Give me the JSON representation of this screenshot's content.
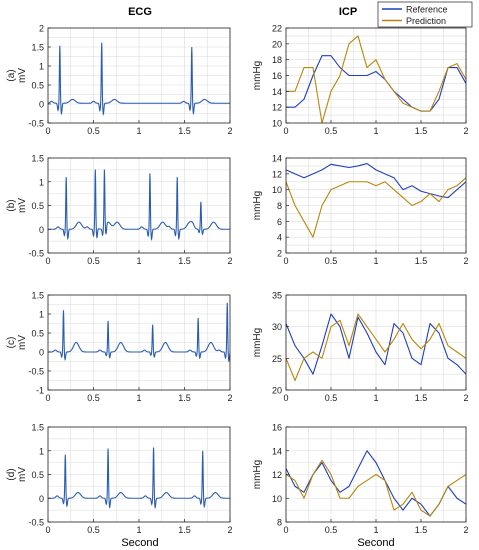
{
  "figure": {
    "ecg_title": "ECG",
    "icp_title": "ICP",
    "xlabel": "Second",
    "legend": {
      "reference": "Reference",
      "prediction": "Prediction"
    },
    "colors": {
      "reference": "#1f3fbf",
      "prediction": "#b8860b",
      "ecg": "#2a5db0"
    }
  },
  "chart_data": [
    {
      "type": "line",
      "panel": "(a)",
      "signal": "ECG",
      "ylabel": "mV",
      "xlim": [
        0,
        2
      ],
      "ylim": [
        -0.5,
        2
      ],
      "xticks": [
        "0",
        "0.5",
        "1",
        "1.5",
        "2"
      ],
      "yticks": [
        "-0.5",
        "0",
        "0.5",
        "1",
        "1.5",
        "2"
      ],
      "grid": true,
      "beats": [
        0.13,
        0.59,
        1.58
      ],
      "peak_amplitude": [
        1.52,
        1.6,
        1.48
      ],
      "baseline": 0.02,
      "t_wave_amplitude": 0.1,
      "series": [
        {
          "name": "ECG",
          "x": [
            0,
            0.08,
            0.1,
            0.11,
            0.13,
            0.15,
            0.17,
            0.25,
            0.35,
            0.45,
            0.55,
            0.57,
            0.59,
            0.61,
            0.63,
            0.7,
            0.8,
            1.0,
            1.2,
            1.45,
            1.53,
            1.56,
            1.58,
            1.6,
            1.62,
            1.7,
            1.8,
            1.9,
            2.0
          ],
          "y": [
            0.0,
            0.0,
            -0.1,
            0.0,
            1.52,
            -0.05,
            0.0,
            0.0,
            0.1,
            0.02,
            0.0,
            -0.1,
            1.6,
            -0.06,
            0.03,
            0.15,
            0.1,
            0.05,
            0.04,
            0.1,
            0.0,
            -0.1,
            1.48,
            -0.08,
            0.0,
            0.02,
            0.05,
            -0.02,
            0.0
          ]
        }
      ]
    },
    {
      "type": "line",
      "panel": "(a)",
      "signal": "ICP",
      "ylabel": "mmHg",
      "xlim": [
        0,
        2
      ],
      "ylim": [
        10,
        22
      ],
      "xticks": [
        "0",
        "0.5",
        "1",
        "1.5",
        "2"
      ],
      "yticks": [
        "10",
        "12",
        "14",
        "16",
        "18",
        "20",
        "22"
      ],
      "grid": true,
      "series": [
        {
          "name": "Reference",
          "x": [
            0,
            0.1,
            0.2,
            0.3,
            0.4,
            0.5,
            0.6,
            0.7,
            0.8,
            0.9,
            1.0,
            1.1,
            1.2,
            1.3,
            1.4,
            1.5,
            1.6,
            1.7,
            1.8,
            1.9,
            2.0
          ],
          "y": [
            12,
            12,
            13,
            16,
            18.5,
            18.5,
            17,
            16,
            16,
            16,
            16.5,
            15.5,
            14,
            13,
            12,
            11.5,
            11.5,
            13,
            17,
            17,
            15
          ]
        },
        {
          "name": "Prediction",
          "x": [
            0,
            0.1,
            0.2,
            0.3,
            0.4,
            0.5,
            0.6,
            0.7,
            0.8,
            0.9,
            1.0,
            1.1,
            1.2,
            1.3,
            1.4,
            1.5,
            1.6,
            1.7,
            1.8,
            1.9,
            2.0
          ],
          "y": [
            14,
            14,
            17,
            17,
            10,
            14,
            16,
            20,
            21,
            17,
            18,
            15.5,
            14,
            12.5,
            12,
            11.5,
            11.5,
            14,
            17,
            17.5,
            15.5
          ]
        }
      ]
    },
    {
      "type": "line",
      "panel": "(b)",
      "signal": "ECG",
      "ylabel": "mV",
      "xlim": [
        0,
        2
      ],
      "ylim": [
        -0.5,
        1.5
      ],
      "xticks": [
        "0",
        "0.5",
        "1",
        "1.5",
        "2"
      ],
      "yticks": [
        "-0.5",
        "0",
        "0.5",
        "1",
        "1.5"
      ],
      "grid": true,
      "beats": [
        0.2,
        0.52,
        0.62,
        1.12,
        1.42,
        1.68
      ],
      "peak_amplitude": [
        1.1,
        1.22,
        1.2,
        1.18,
        1.1,
        0.58
      ],
      "baseline": 0.0,
      "t_wave_amplitude": 0.15,
      "series": [
        {
          "name": "ECG",
          "x": [
            0,
            0.1,
            0.18,
            0.2,
            0.22,
            0.3,
            0.4,
            0.5,
            0.52,
            0.54,
            0.6,
            0.62,
            0.64,
            0.8,
            1.0,
            1.1,
            1.12,
            1.14,
            1.3,
            1.4,
            1.42,
            1.44,
            1.6,
            1.68,
            1.7,
            1.85,
            2.0
          ],
          "y": [
            0.05,
            0.15,
            -0.1,
            1.1,
            -0.1,
            0.0,
            -0.15,
            0.0,
            1.22,
            -0.1,
            0.0,
            1.2,
            -0.1,
            0.2,
            0.05,
            0.0,
            1.18,
            -0.1,
            0.0,
            0.0,
            1.1,
            -0.1,
            0.0,
            0.58,
            -0.05,
            0.1,
            0.0
          ]
        }
      ]
    },
    {
      "type": "line",
      "panel": "(b)",
      "signal": "ICP",
      "ylabel": "mmHg",
      "xlim": [
        0,
        2
      ],
      "ylim": [
        2,
        14
      ],
      "xticks": [
        "0",
        "0.5",
        "1",
        "1.5",
        "2"
      ],
      "yticks": [
        "2",
        "4",
        "6",
        "8",
        "10",
        "12",
        "14"
      ],
      "grid": true,
      "series": [
        {
          "name": "Reference",
          "x": [
            0,
            0.1,
            0.2,
            0.3,
            0.4,
            0.5,
            0.6,
            0.7,
            0.8,
            0.9,
            1.0,
            1.1,
            1.2,
            1.3,
            1.4,
            1.5,
            1.6,
            1.7,
            1.8,
            1.9,
            2.0
          ],
          "y": [
            12.5,
            12,
            11.5,
            12,
            12.5,
            13.2,
            13,
            12.8,
            13,
            13.3,
            12.5,
            12,
            11.5,
            10,
            10.5,
            9.8,
            9.5,
            9.2,
            9,
            10,
            11
          ]
        },
        {
          "name": "Prediction",
          "x": [
            0,
            0.1,
            0.2,
            0.3,
            0.4,
            0.5,
            0.6,
            0.7,
            0.8,
            0.9,
            1.0,
            1.1,
            1.2,
            1.3,
            1.4,
            1.5,
            1.6,
            1.7,
            1.8,
            1.9,
            2.0
          ],
          "y": [
            11,
            8,
            6,
            4,
            8,
            10,
            10.5,
            11,
            11,
            11,
            10.5,
            11,
            10,
            9,
            8,
            8.5,
            9.5,
            8.5,
            10,
            10.5,
            11.5
          ]
        }
      ]
    },
    {
      "type": "line",
      "panel": "(c)",
      "signal": "ECG",
      "ylabel": "mV",
      "xlim": [
        0,
        2
      ],
      "ylim": [
        -1,
        1.5
      ],
      "xticks": [
        "0",
        "0.5",
        "1",
        "1.5",
        "2"
      ],
      "yticks": [
        "-1",
        "-0.5",
        "0",
        "0.5",
        "1",
        "1.5"
      ],
      "grid": true,
      "beats": [
        0.17,
        0.66,
        1.15,
        1.65,
        1.97
      ],
      "peak_amplitude": [
        1.1,
        0.82,
        0.72,
        0.9,
        1.3
      ],
      "baseline": 0.0,
      "t_wave_amplitude": 0.25,
      "series": [
        {
          "name": "ECG",
          "x": [
            0,
            0.1,
            0.15,
            0.17,
            0.19,
            0.25,
            0.35,
            0.5,
            0.6,
            0.64,
            0.66,
            0.68,
            0.75,
            0.85,
            1.0,
            1.1,
            1.13,
            1.15,
            1.17,
            1.25,
            1.35,
            1.5,
            1.6,
            1.63,
            1.65,
            1.67,
            1.75,
            1.85,
            1.95,
            1.97,
            1.99,
            2.0
          ],
          "y": [
            0.3,
            0.0,
            -0.1,
            1.1,
            -0.6,
            0.0,
            0.3,
            0.1,
            0.0,
            -0.1,
            0.82,
            -0.55,
            0.0,
            0.25,
            0.1,
            0.0,
            -0.1,
            0.72,
            -0.5,
            0.0,
            0.25,
            0.1,
            0.0,
            -0.1,
            0.9,
            -0.55,
            0.0,
            0.25,
            0.0,
            1.3,
            -0.8,
            -0.1
          ]
        }
      ]
    },
    {
      "type": "line",
      "panel": "(c)",
      "signal": "ICP",
      "ylabel": "mmHg",
      "xlim": [
        0,
        2
      ],
      "ylim": [
        20,
        35
      ],
      "xticks": [
        "0",
        "0.5",
        "1",
        "1.5",
        "2"
      ],
      "yticks": [
        "20",
        "25",
        "30",
        "35"
      ],
      "grid": true,
      "series": [
        {
          "name": "Reference",
          "x": [
            0,
            0.1,
            0.2,
            0.3,
            0.4,
            0.5,
            0.6,
            0.7,
            0.8,
            0.9,
            1.0,
            1.1,
            1.2,
            1.3,
            1.4,
            1.5,
            1.6,
            1.7,
            1.8,
            1.9,
            2.0
          ],
          "y": [
            30.5,
            27,
            25,
            22.5,
            27,
            32,
            30,
            25,
            31.5,
            29,
            26,
            24,
            30.5,
            29,
            25,
            24,
            30.5,
            29,
            25,
            24,
            22.5
          ]
        },
        {
          "name": "Prediction",
          "x": [
            0,
            0.1,
            0.2,
            0.3,
            0.4,
            0.5,
            0.6,
            0.7,
            0.8,
            0.9,
            1.0,
            1.1,
            1.2,
            1.3,
            1.4,
            1.5,
            1.6,
            1.7,
            1.8,
            1.9,
            2.0
          ],
          "y": [
            25,
            21.5,
            25,
            26,
            25,
            30,
            31,
            27,
            32,
            30,
            28,
            26,
            28,
            30.5,
            28,
            26.5,
            28,
            30.5,
            27,
            26,
            25
          ]
        }
      ]
    },
    {
      "type": "line",
      "panel": "(d)",
      "signal": "ECG",
      "ylabel": "mV",
      "xlim": [
        0,
        2
      ],
      "ylim": [
        -0.5,
        1.5
      ],
      "xticks": [
        "0",
        "0.5",
        "1",
        "1.5",
        "2"
      ],
      "yticks": [
        "-0.5",
        "0",
        "0.5",
        "1",
        "1.5"
      ],
      "grid": true,
      "beats": [
        0.19,
        0.66,
        1.16,
        1.7
      ],
      "peak_amplitude": [
        0.92,
        1.05,
        1.07,
        1.0
      ],
      "baseline": 0.0,
      "t_wave_amplitude": 0.12,
      "series": [
        {
          "name": "ECG",
          "x": [
            0,
            0.1,
            0.17,
            0.19,
            0.21,
            0.3,
            0.4,
            0.6,
            0.64,
            0.66,
            0.68,
            0.8,
            1.0,
            1.14,
            1.16,
            1.18,
            1.3,
            1.5,
            1.68,
            1.7,
            1.72,
            1.85,
            2.0
          ],
          "y": [
            0.0,
            0.0,
            -0.05,
            0.92,
            -0.1,
            0.0,
            0.12,
            0.0,
            -0.05,
            1.05,
            -0.1,
            0.12,
            0.0,
            -0.05,
            1.07,
            -0.1,
            0.12,
            0.0,
            -0.05,
            1.0,
            -0.1,
            0.12,
            0.0
          ]
        }
      ]
    },
    {
      "type": "line",
      "panel": "(d)",
      "signal": "ICP",
      "ylabel": "mmHg",
      "xlim": [
        0,
        2
      ],
      "ylim": [
        8,
        16
      ],
      "xticks": [
        "0",
        "0.5",
        "1",
        "1.5",
        "2"
      ],
      "yticks": [
        "8",
        "10",
        "12",
        "14",
        "16"
      ],
      "grid": true,
      "series": [
        {
          "name": "Reference",
          "x": [
            0,
            0.1,
            0.2,
            0.3,
            0.4,
            0.5,
            0.6,
            0.7,
            0.8,
            0.9,
            1.0,
            1.1,
            1.2,
            1.3,
            1.4,
            1.5,
            1.6,
            1.7,
            1.8,
            1.9,
            2.0
          ],
          "y": [
            12.5,
            11,
            10.5,
            12,
            13,
            11.5,
            10.5,
            11,
            12.5,
            14,
            13,
            11.5,
            10,
            9,
            10,
            9.5,
            8.5,
            9.5,
            11,
            10,
            9.5
          ]
        },
        {
          "name": "Prediction",
          "x": [
            0,
            0.1,
            0.2,
            0.3,
            0.4,
            0.5,
            0.6,
            0.7,
            0.8,
            0.9,
            1.0,
            1.1,
            1.2,
            1.3,
            1.4,
            1.5,
            1.6,
            1.7,
            1.8,
            1.9,
            2.0
          ],
          "y": [
            12,
            11.5,
            10,
            12,
            13.2,
            12,
            10,
            10,
            11,
            11.5,
            12,
            11.5,
            9,
            9.5,
            10.5,
            9,
            8.5,
            9.5,
            11,
            11.5,
            12
          ]
        }
      ]
    }
  ]
}
